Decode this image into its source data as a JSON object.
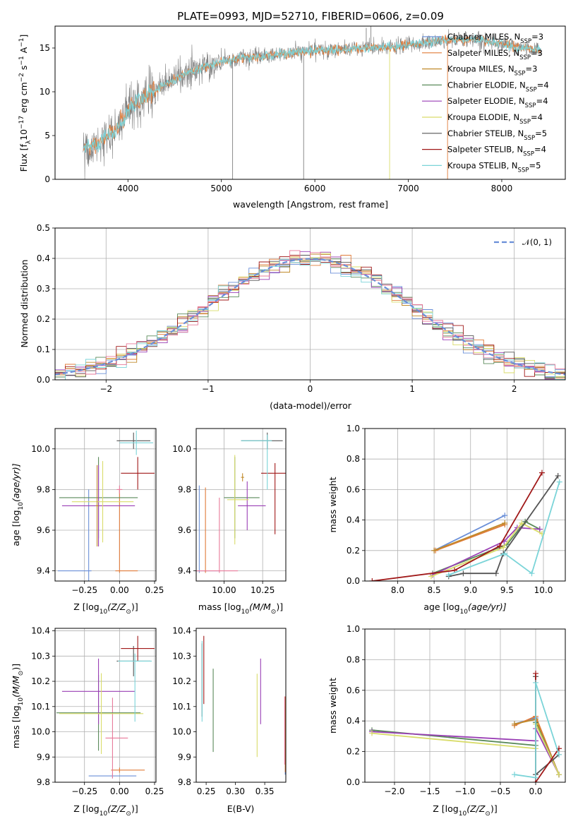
{
  "colors": {
    "series": [
      "#6a8fd8",
      "#e07b39",
      "#c08a2a",
      "#5a8a5a",
      "#9a3fb5",
      "#d9dc6a",
      "#555555",
      "#a01818",
      "#7ad4d8"
    ],
    "gaussian": "#6a8fd8",
    "spectrum_data": "#808080",
    "hist_extra": "#e87a9a",
    "bar_extra": "#e87a9a"
  },
  "legend_labels": [
    "Chabrier MILES, N",
    "Salpeter MILES, N",
    "Kroupa MILES, N",
    "Chabrier ELODIE, N",
    "Salpeter ELODIE, N",
    "Kroupa ELODIE, N",
    "Chabrier STELIB, N",
    "Salpeter STELIB, N",
    "Kroupa STELIB, N"
  ],
  "legend_sub": "SSP",
  "legend_nssp": [
    "=3",
    "=3",
    "=3",
    "=4",
    "=4",
    "=4",
    "=5",
    "=4",
    "=5"
  ],
  "chart_data": [
    {
      "id": "spectrum",
      "type": "line",
      "title": "PLATE=0993, MJD=52710, FIBERID=0606, z=0.09",
      "xlabel": "wavelength [Angstrom, rest frame]",
      "ylabel": "Flux [f",
      "ylabel_sym": "λ",
      "ylabel_mid": "10",
      "ylabel_exp1": "−17",
      "ylabel_mid2": " erg cm",
      "ylabel_exp2": "−2",
      "ylabel_mid3": " s",
      "ylabel_exp3": "−1",
      "ylabel_mid4": " A",
      "ylabel_exp4": "−1",
      "ylabel_end": "]",
      "xlim": [
        3220,
        8680
      ],
      "ylim": [
        0,
        17.5
      ],
      "xticks": [
        4000,
        5000,
        6000,
        7000,
        8000
      ],
      "yticks": [
        0,
        5,
        10,
        15
      ],
      "grid": false,
      "legend_position": "right",
      "continuum": [
        [
          3520,
          3.5
        ],
        [
          3700,
          4.3
        ],
        [
          3850,
          5.4
        ],
        [
          4000,
          7.8
        ],
        [
          4200,
          9.6
        ],
        [
          4400,
          10.9
        ],
        [
          4600,
          12.0
        ],
        [
          4800,
          12.8
        ],
        [
          5000,
          13.4
        ],
        [
          5200,
          13.9
        ],
        [
          5400,
          14.0
        ],
        [
          5600,
          14.2
        ],
        [
          5800,
          14.5
        ],
        [
          6000,
          14.7
        ],
        [
          6200,
          14.8
        ],
        [
          6400,
          14.9
        ],
        [
          6600,
          15.0
        ],
        [
          6800,
          15.1
        ],
        [
          7000,
          15.3
        ],
        [
          7200,
          15.6
        ],
        [
          7400,
          15.9
        ],
        [
          7600,
          16.0
        ],
        [
          7800,
          15.9
        ],
        [
          8000,
          15.5
        ],
        [
          8200,
          15.0
        ],
        [
          8420,
          14.8
        ]
      ]
    },
    {
      "id": "residual-histogram",
      "type": "line",
      "xlabel": "(data-model)/error",
      "ylabel": "Normed distribution",
      "xlim": [
        -2.5,
        2.5
      ],
      "ylim": [
        0,
        0.5
      ],
      "xticks": [
        -2,
        -1,
        0,
        1,
        2
      ],
      "yticks": [
        0.0,
        0.1,
        0.2,
        0.3,
        0.4,
        0.5
      ],
      "grid": true,
      "legend_position": "top-right",
      "gaussian_label": "𝒩(0, 1)",
      "bin_width": 0.1
    },
    {
      "id": "age-vs-Z",
      "type": "scatter",
      "xlabel": "Z [log",
      "xlabel_sub": "10",
      "xlabel_frac": "(Z/Z",
      "xlabel_end": ")]",
      "ylabel": "age  [log",
      "ylabel_sub": "10",
      "ylabel_frac": "(age/yr)]",
      "xlim": [
        -0.46,
        0.26
      ],
      "ylim": [
        9.35,
        10.1
      ],
      "xticks": [
        -0.25,
        0.0,
        0.25
      ],
      "yticks": [
        9.4,
        9.6,
        9.8,
        10.0
      ],
      "grid": true,
      "points": [
        {
          "s": 0,
          "x": -0.22,
          "y": 9.4,
          "xe": [
            0.22,
            0.02
          ],
          "ye": [
            0.4,
            0.4
          ]
        },
        {
          "s": 1,
          "x": 0.0,
          "y": 9.4,
          "xe": [
            0.03,
            0.13
          ],
          "ye": [
            0.01,
            0.4
          ]
        },
        {
          "s": 9,
          "x": 0.0,
          "y": 9.8,
          "xe": [
            0.02,
            0.02
          ],
          "ye": [
            0.02,
            0.02
          ]
        },
        {
          "s": 3,
          "x": -0.15,
          "y": 9.76,
          "xe": [
            0.28,
            0.28
          ],
          "ye": [
            0.2,
            0.2
          ]
        },
        {
          "s": 4,
          "x": -0.15,
          "y": 9.72,
          "xe": [
            0.26,
            0.26
          ],
          "ye": [
            0.2,
            0.2
          ]
        },
        {
          "s": 5,
          "x": -0.12,
          "y": 9.74,
          "xe": [
            0.22,
            0.22
          ],
          "ye": [
            0.2,
            0.2
          ]
        },
        {
          "s": 6,
          "x": 0.1,
          "y": 10.04,
          "xe": [
            0.12,
            0.12
          ],
          "ye": [
            0.04,
            0.04
          ]
        },
        {
          "s": 7,
          "x": 0.13,
          "y": 9.88,
          "xe": [
            0.12,
            0.12
          ],
          "ye": [
            0.08,
            0.08
          ]
        },
        {
          "s": 8,
          "x": 0.12,
          "y": 10.03,
          "xe": [
            0.12,
            0.12
          ],
          "ye": [
            0.06,
            0.06
          ]
        },
        {
          "s": 2,
          "x": -0.16,
          "y": 9.72,
          "xe": [
            0.01,
            0.01
          ],
          "ye": [
            0.2,
            0.2
          ]
        }
      ]
    },
    {
      "id": "age-vs-mass",
      "type": "scatter",
      "xlabel": "mass [log",
      "xlabel_sub": "10",
      "xlabel_frac": "(M/M",
      "xlabel_end": ")]",
      "xlim": [
        9.82,
        10.4
      ],
      "ylim": [
        9.35,
        10.1
      ],
      "xticks": [
        10.0,
        10.25
      ],
      "yticks": [
        9.4,
        9.6,
        9.8,
        10.0
      ],
      "grid": true,
      "points": [
        {
          "s": 0,
          "x": 9.84,
          "y": 9.4,
          "xe": [
            0.02,
            0.13
          ],
          "ye": [
            0.01,
            0.42
          ]
        },
        {
          "s": 1,
          "x": 9.88,
          "y": 9.4,
          "xe": [
            0.01,
            0.01
          ],
          "ye": [
            0.01,
            0.41
          ]
        },
        {
          "s": 9,
          "x": 9.97,
          "y": 9.4,
          "xe": [
            0.16,
            0.12
          ],
          "ye": [
            0.01,
            0.36
          ]
        },
        {
          "s": 3,
          "x": 10.07,
          "y": 9.76,
          "xe": [
            0.07,
            0.16
          ],
          "ye": [
            0.2,
            0.2
          ]
        },
        {
          "s": 4,
          "x": 10.15,
          "y": 9.72,
          "xe": [
            0.06,
            0.12
          ],
          "ye": [
            0.12,
            0.12
          ]
        },
        {
          "s": 5,
          "x": 10.07,
          "y": 9.75,
          "xe": [
            0.05,
            0.09
          ],
          "ye": [
            0.22,
            0.22
          ]
        },
        {
          "s": 6,
          "x": 10.28,
          "y": 10.04,
          "xe": [
            0.17,
            0.1
          ],
          "ye": [
            0.04,
            0.04
          ]
        },
        {
          "s": 7,
          "x": 10.33,
          "y": 9.88,
          "xe": [
            0.09,
            0.1
          ],
          "ye": [
            0.3,
            0.05
          ]
        },
        {
          "s": 8,
          "x": 10.28,
          "y": 10.04,
          "xe": [
            0.17,
            0.03
          ],
          "ye": [
            0.24,
            0.03
          ]
        },
        {
          "s": 2,
          "x": 10.12,
          "y": 9.86,
          "xe": [
            0.01,
            0.01
          ],
          "ye": [
            0.02,
            0.02
          ]
        }
      ]
    },
    {
      "id": "mass-weight-vs-age",
      "type": "line",
      "xlabel": "age  [log",
      "xlabel_sub": "10",
      "xlabel_frac": "(age/yr)]",
      "ylabel": "mass weight",
      "xlim": [
        7.55,
        10.3
      ],
      "ylim": [
        0,
        1.0
      ],
      "xticks": [
        8.0,
        8.5,
        9.0,
        9.5,
        10.0
      ],
      "yticks": [
        0.0,
        0.2,
        0.4,
        0.6,
        0.8,
        1.0
      ],
      "grid": true,
      "series": [
        {
          "s": 0,
          "x": [
            8.5,
            9.47
          ],
          "y": [
            0.2,
            0.43
          ]
        },
        {
          "s": 1,
          "x": [
            8.52,
            9.47
          ],
          "y": [
            0.2,
            0.37
          ]
        },
        {
          "s": 2,
          "x": [
            8.5,
            9.47
          ],
          "y": [
            0.2,
            0.38
          ]
        },
        {
          "s": 3,
          "x": [
            8.48,
            9.5,
            9.75,
            9.95
          ],
          "y": [
            0.05,
            0.24,
            0.39,
            0.34
          ]
        },
        {
          "s": 4,
          "x": [
            8.48,
            9.46,
            9.64,
            9.95
          ],
          "y": [
            0.04,
            0.26,
            0.35,
            0.34
          ]
        },
        {
          "s": 5,
          "x": [
            8.46,
            9.45,
            9.7,
            9.98
          ],
          "y": [
            0.03,
            0.22,
            0.38,
            0.31
          ]
        },
        {
          "s": 6,
          "x": [
            8.7,
            8.9,
            9.35,
            9.45,
            10.2
          ],
          "y": [
            0.03,
            0.05,
            0.05,
            0.18,
            0.69
          ]
        },
        {
          "s": 7,
          "x": [
            7.65,
            8.78,
            9.4,
            9.98
          ],
          "y": [
            0.0,
            0.07,
            0.23,
            0.71
          ]
        },
        {
          "s": 8,
          "x": [
            8.7,
            9.47,
            9.84,
            10.22
          ],
          "y": [
            0.04,
            0.18,
            0.05,
            0.65
          ]
        }
      ]
    },
    {
      "id": "mass-vs-Z",
      "type": "scatter",
      "xlabel": "Z [log",
      "xlabel_sub": "10",
      "xlabel_frac": "(Z/Z",
      "xlabel_end": ")]",
      "ylabel": "mass [log",
      "ylabel_sub": "10",
      "ylabel_frac": "(M/M",
      "ylabel_end": ")]",
      "xlim": [
        -0.46,
        0.26
      ],
      "ylim": [
        9.8,
        10.41
      ],
      "xticks": [
        -0.25,
        0.0,
        0.25
      ],
      "yticks": [
        9.8,
        9.9,
        10.0,
        10.1,
        10.2,
        10.3,
        10.4
      ],
      "grid": true,
      "points": [
        {
          "s": 0,
          "x": -0.05,
          "y": 9.825,
          "xe": [
            0.17,
            0.17
          ],
          "ye": [
            0.01,
            0.01
          ]
        },
        {
          "s": 1,
          "x": 0.0,
          "y": 9.848,
          "xe": [
            0.06,
            0.18
          ],
          "ye": [
            0.01,
            0.01
          ]
        },
        {
          "s": 9,
          "x": -0.05,
          "y": 9.975,
          "xe": [
            0.05,
            0.11
          ],
          "ye": [
            0.16,
            0.16
          ]
        },
        {
          "s": 3,
          "x": -0.15,
          "y": 10.075,
          "xe": [
            0.3,
            0.3
          ],
          "ye": [
            0.15,
            0.15
          ]
        },
        {
          "s": 4,
          "x": -0.15,
          "y": 10.16,
          "xe": [
            0.26,
            0.26
          ],
          "ye": [
            0.13,
            0.13
          ]
        },
        {
          "s": 5,
          "x": -0.13,
          "y": 10.072,
          "xe": [
            0.3,
            0.3
          ],
          "ye": [
            0.16,
            0.16
          ]
        },
        {
          "s": 6,
          "x": 0.1,
          "y": 10.28,
          "xe": [
            0.12,
            0.12
          ],
          "ye": [
            0.06,
            0.06
          ]
        },
        {
          "s": 7,
          "x": 0.13,
          "y": 10.33,
          "xe": [
            0.12,
            0.12
          ],
          "ye": [
            0.05,
            0.05
          ]
        },
        {
          "s": 8,
          "x": 0.11,
          "y": 10.28,
          "xe": [
            0.12,
            0.12
          ],
          "ye": [
            0.24,
            0.03
          ]
        }
      ]
    },
    {
      "id": "mass-vs-EBV",
      "type": "scatter",
      "xlabel": "E(B-V)",
      "xlim": [
        0.233,
        0.386
      ],
      "ylim": [
        9.8,
        10.41
      ],
      "xticks": [
        0.25,
        0.3,
        0.35
      ],
      "yticks": [
        9.8,
        9.9,
        10.0,
        10.1,
        10.2,
        10.3,
        10.4
      ],
      "grid": false,
      "points": [
        {
          "s": 0,
          "x": 0.385,
          "y": 9.9,
          "ye": [
            0.07,
            0.2
          ]
        },
        {
          "s": 1,
          "x": 0.385,
          "y": 10.0,
          "ye": [
            0.16,
            0.14
          ]
        },
        {
          "s": 9,
          "x": 0.384,
          "y": 10.02,
          "ye": [
            0.15,
            0.12
          ]
        },
        {
          "s": 3,
          "x": 0.262,
          "y": 10.1,
          "ye": [
            0.18,
            0.15
          ]
        },
        {
          "s": 4,
          "x": 0.343,
          "y": 10.15,
          "ye": [
            0.12,
            0.14
          ]
        },
        {
          "s": 5,
          "x": 0.337,
          "y": 10.07,
          "ye": [
            0.17,
            0.16
          ]
        },
        {
          "s": 6,
          "x": 0.243,
          "y": 10.2,
          "ye": [
            0.14,
            0.15
          ]
        },
        {
          "s": 7,
          "x": 0.246,
          "y": 10.25,
          "ye": [
            0.14,
            0.13
          ]
        },
        {
          "s": 8,
          "x": 0.243,
          "y": 10.2,
          "ye": [
            0.16,
            0.16
          ]
        }
      ]
    },
    {
      "id": "mass-weight-vs-Z",
      "type": "line",
      "xlabel": "Z [log",
      "xlabel_sub": "10",
      "xlabel_frac": "(Z/Z",
      "xlabel_end": ")]",
      "ylabel": "mass weight",
      "xlim": [
        -2.42,
        0.42
      ],
      "ylim": [
        0,
        1.0
      ],
      "xticks": [
        -2.0,
        -1.5,
        -1.0,
        -0.5,
        0.0
      ],
      "yticks": [
        0.0,
        0.2,
        0.4,
        0.6,
        0.8,
        1.0
      ],
      "grid": true,
      "series": [
        {
          "s": 0,
          "x": [
            -0.3,
            0.0,
            0.33
          ],
          "y": [
            0.38,
            0.42,
            0.05
          ]
        },
        {
          "s": 1,
          "x": [
            -0.3,
            0.0,
            0.33
          ],
          "y": [
            0.37,
            0.43,
            0.05
          ]
        },
        {
          "s": 2,
          "x": [
            -0.3,
            0.0,
            0.33
          ],
          "y": [
            0.38,
            0.41,
            0.05
          ]
        },
        {
          "s": 3,
          "x": [
            -2.32,
            0.0,
            0.0,
            0.33
          ],
          "y": [
            0.34,
            0.24,
            0.39,
            0.05
          ]
        },
        {
          "s": 4,
          "x": [
            -2.32,
            0.0,
            0.0,
            0.33
          ],
          "y": [
            0.33,
            0.27,
            0.35,
            0.05
          ]
        },
        {
          "s": 5,
          "x": [
            -2.32,
            0.0,
            0.0,
            0.33
          ],
          "y": [
            0.32,
            0.22,
            0.38,
            0.05
          ]
        },
        {
          "s": 6,
          "x": [
            0.0,
            0.0,
            0.33
          ],
          "y": [
            0.69,
            0.05,
            0.18
          ]
        },
        {
          "s": 7,
          "x": [
            0.0,
            0.0,
            0.33
          ],
          "y": [
            0.71,
            0.0,
            0.22
          ]
        },
        {
          "s": 8,
          "x": [
            -0.3,
            0.0,
            0.0,
            0.33
          ],
          "y": [
            0.05,
            0.03,
            0.65,
            0.18
          ]
        }
      ]
    }
  ]
}
